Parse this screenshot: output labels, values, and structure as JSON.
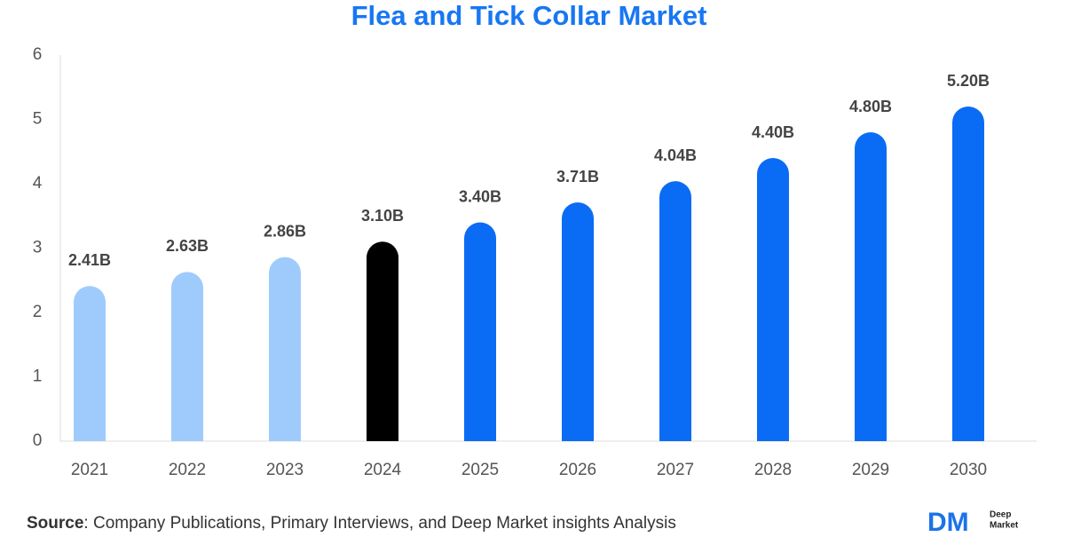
{
  "chart_data": {
    "type": "bar",
    "title": "Flea and Tick Collar Market",
    "categories": [
      "2021",
      "2022",
      "2023",
      "2024",
      "2025",
      "2026",
      "2027",
      "2028",
      "2029",
      "2030"
    ],
    "values": [
      2.41,
      2.63,
      2.86,
      3.1,
      3.4,
      3.71,
      4.04,
      4.4,
      4.8,
      5.2
    ],
    "value_labels": [
      "2.41B",
      "2.63B",
      "2.86B",
      "3.10B",
      "3.40B",
      "3.71B",
      "4.04B",
      "4.40B",
      "4.80B",
      "5.20B"
    ],
    "colors": [
      "#9fcbfc",
      "#9fcbfc",
      "#9fcbfc",
      "#000000",
      "#0a6cf5",
      "#0a6cf5",
      "#0a6cf5",
      "#0a6cf5",
      "#0a6cf5",
      "#0a6cf5"
    ],
    "ylim": [
      0,
      6
    ],
    "yticks": [
      0,
      1,
      2,
      3,
      4,
      5,
      6
    ],
    "grid": false,
    "source_label": "Source",
    "source_text": ": Company Publications, Primary Interviews, and Deep Market insights Analysis",
    "logo": {
      "mark": "DM",
      "line1": "Deep",
      "line2": "Market"
    }
  }
}
